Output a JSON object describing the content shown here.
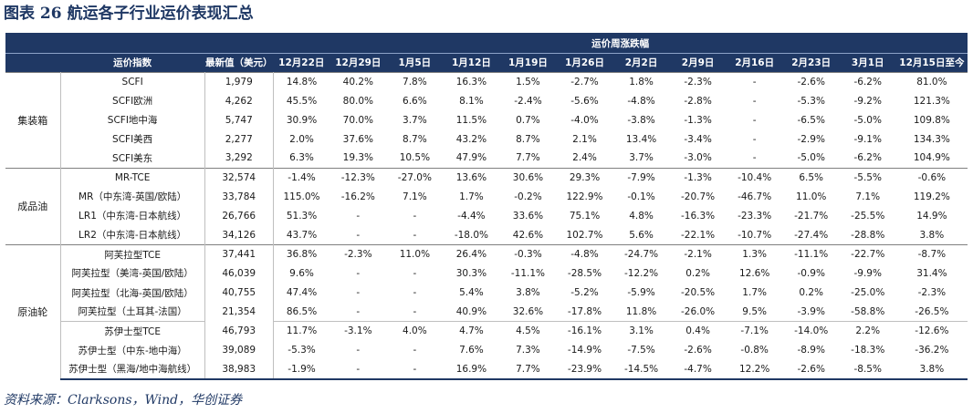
{
  "figure": {
    "label": "图表 26",
    "title": "航运各子行业运价表现汇总",
    "source": "资料来源：Clarksons，Wind，华创证券"
  },
  "table": {
    "group_header": "运价周涨跌幅",
    "columns": [
      "运价指数",
      "最新值（美元）",
      "12月22日",
      "12月29日",
      "1月5日",
      "1月12日",
      "1月19日",
      "1月26日",
      "2月2日",
      "2月9日",
      "2月16日",
      "2月23日",
      "3月1日",
      "12月15日至今"
    ],
    "groups": [
      {
        "category": "集装箱",
        "rows": [
          {
            "name": "SCFI",
            "latest": "1,979",
            "values": [
              "14.8%",
              "40.2%",
              "7.8%",
              "16.3%",
              "1.5%",
              "-2.7%",
              "1.8%",
              "-2.3%",
              "-",
              "-2.6%",
              "-6.2%",
              "81.0%"
            ]
          },
          {
            "name": "SCFI欧洲",
            "latest": "4,262",
            "values": [
              "45.5%",
              "80.0%",
              "6.6%",
              "8.1%",
              "-2.4%",
              "-5.6%",
              "-4.8%",
              "-2.8%",
              "-",
              "-5.3%",
              "-9.2%",
              "121.3%"
            ]
          },
          {
            "name": "SCFI地中海",
            "latest": "5,747",
            "values": [
              "30.9%",
              "70.0%",
              "3.7%",
              "11.5%",
              "0.7%",
              "-4.0%",
              "-3.8%",
              "-1.3%",
              "-",
              "-6.5%",
              "-5.0%",
              "109.8%"
            ]
          },
          {
            "name": "SCFI美西",
            "latest": "2,277",
            "values": [
              "2.0%",
              "37.6%",
              "8.7%",
              "43.2%",
              "8.7%",
              "2.1%",
              "13.4%",
              "-3.4%",
              "-",
              "-2.9%",
              "-9.1%",
              "134.3%"
            ]
          },
          {
            "name": "SCFI美东",
            "latest": "3,292",
            "values": [
              "6.3%",
              "19.3%",
              "10.5%",
              "47.9%",
              "7.7%",
              "2.4%",
              "3.7%",
              "-3.0%",
              "-",
              "-5.0%",
              "-6.2%",
              "104.9%"
            ]
          }
        ]
      },
      {
        "category": "成品油",
        "rows": [
          {
            "name": "MR-TCE",
            "latest": "32,574",
            "values": [
              "-1.4%",
              "-12.3%",
              "-27.0%",
              "13.6%",
              "30.6%",
              "29.3%",
              "-7.9%",
              "-1.3%",
              "-10.4%",
              "6.5%",
              "-5.5%",
              "-0.6%"
            ]
          },
          {
            "name": "MR（中东湾-英国/欧陆）",
            "latest": "33,784",
            "values": [
              "115.0%",
              "-16.2%",
              "7.1%",
              "1.7%",
              "-0.2%",
              "122.9%",
              "-0.1%",
              "-20.7%",
              "-46.7%",
              "11.0%",
              "7.1%",
              "119.2%"
            ]
          },
          {
            "name": "LR1（中东湾-日本航线）",
            "latest": "26,766",
            "values": [
              "51.3%",
              "-",
              "-",
              "-4.4%",
              "33.6%",
              "75.1%",
              "4.8%",
              "-16.3%",
              "-23.3%",
              "-21.7%",
              "-25.5%",
              "14.9%"
            ]
          },
          {
            "name": "LR2（中东湾-日本航线）",
            "latest": "34,126",
            "values": [
              "43.7%",
              "-",
              "-",
              "-18.0%",
              "42.6%",
              "102.7%",
              "5.6%",
              "-22.1%",
              "-10.7%",
              "-27.4%",
              "-28.8%",
              "3.8%"
            ]
          }
        ]
      },
      {
        "category": "原油轮",
        "rows": [
          {
            "name": "阿芙拉型TCE",
            "latest": "37,441",
            "values": [
              "36.8%",
              "-2.3%",
              "11.0%",
              "26.4%",
              "-0.3%",
              "-4.8%",
              "-24.7%",
              "-2.1%",
              "1.3%",
              "-11.1%",
              "-22.7%",
              "-8.7%"
            ]
          },
          {
            "name": "阿芙拉型（美湾-英国/欧陆）",
            "latest": "46,039",
            "values": [
              "9.6%",
              "-",
              "-",
              "30.3%",
              "-11.1%",
              "-28.5%",
              "-12.2%",
              "0.2%",
              "12.6%",
              "-0.9%",
              "-9.9%",
              "31.4%"
            ]
          },
          {
            "name": "阿芙拉型（北海-英国/欧陆）",
            "latest": "40,755",
            "values": [
              "47.4%",
              "-",
              "-",
              "5.4%",
              "3.8%",
              "-5.2%",
              "-5.9%",
              "-20.5%",
              "1.7%",
              "0.2%",
              "-25.0%",
              "-2.3%"
            ]
          },
          {
            "name": "阿芙拉型（土耳其-法国）",
            "latest": "21,354",
            "values": [
              "86.5%",
              "-",
              "-",
              "40.9%",
              "32.6%",
              "-17.8%",
              "11.8%",
              "-26.0%",
              "9.5%",
              "-3.9%",
              "-58.8%",
              "-26.5%"
            ]
          },
          {
            "name": "苏伊士型TCE",
            "latest": "46,793",
            "values": [
              "11.7%",
              "-3.1%",
              "4.0%",
              "4.7%",
              "4.5%",
              "-16.1%",
              "3.1%",
              "0.4%",
              "-7.1%",
              "-14.0%",
              "2.2%",
              "-12.6%"
            ],
            "subgroup_start": true
          },
          {
            "name": "苏伊士型（中东-地中海）",
            "latest": "39,089",
            "values": [
              "-5.3%",
              "-",
              "-",
              "7.6%",
              "7.3%",
              "-14.9%",
              "-7.5%",
              "-2.6%",
              "-0.8%",
              "-8.9%",
              "-18.3%",
              "-36.2%"
            ]
          },
          {
            "name": "苏伊士型（黑海/地中海航线）",
            "latest": "38,983",
            "values": [
              "-1.9%",
              "-",
              "-",
              "16.9%",
              "7.7%",
              "-23.9%",
              "-14.5%",
              "-4.7%",
              "12.2%",
              "-2.6%",
              "-8.5%",
              "3.8%"
            ]
          }
        ]
      }
    ]
  }
}
